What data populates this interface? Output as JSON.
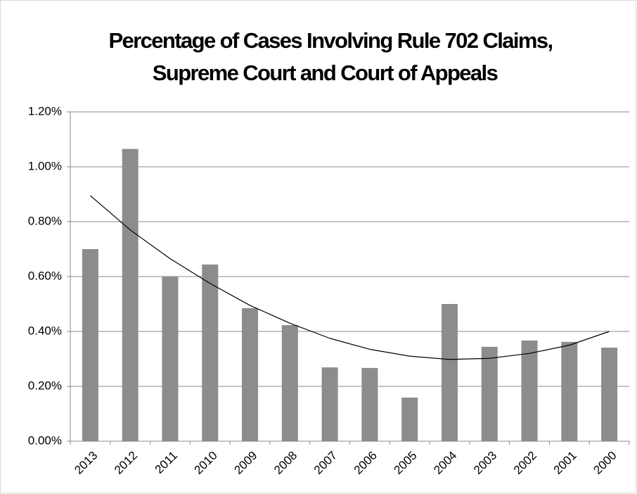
{
  "chart_data": {
    "type": "bar",
    "title": [
      "Percentage of Cases Involving Rule 702 Claims,",
      "Supreme Court and Court of Appeals"
    ],
    "categories": [
      "2013",
      "2012",
      "2011",
      "2010",
      "2009",
      "2008",
      "2007",
      "2006",
      "2005",
      "2004",
      "2003",
      "2002",
      "2001",
      "2000"
    ],
    "values": [
      0.7,
      1.065,
      0.6,
      0.644,
      0.485,
      0.423,
      0.269,
      0.267,
      0.159,
      0.5,
      0.344,
      0.367,
      0.362,
      0.341
    ],
    "color": "#8c8c8c",
    "trendline": {
      "color": "#000000",
      "values": [
        0.895,
        0.77,
        0.665,
        0.575,
        0.495,
        0.43,
        0.375,
        0.335,
        0.31,
        0.298,
        0.302,
        0.32,
        0.35,
        0.4
      ]
    },
    "ylim": [
      0,
      1.2
    ],
    "yticks": [
      {
        "value": 0,
        "label": "0.00%"
      },
      {
        "value": 0.2,
        "label": "0.20%"
      },
      {
        "value": 0.4,
        "label": "0.40%"
      },
      {
        "value": 0.6,
        "label": "0.60%"
      },
      {
        "value": 0.8,
        "label": "0.80%"
      },
      {
        "value": 1.0,
        "label": "1.00%"
      },
      {
        "value": 1.2,
        "label": "1.20%"
      }
    ],
    "grid": true
  }
}
